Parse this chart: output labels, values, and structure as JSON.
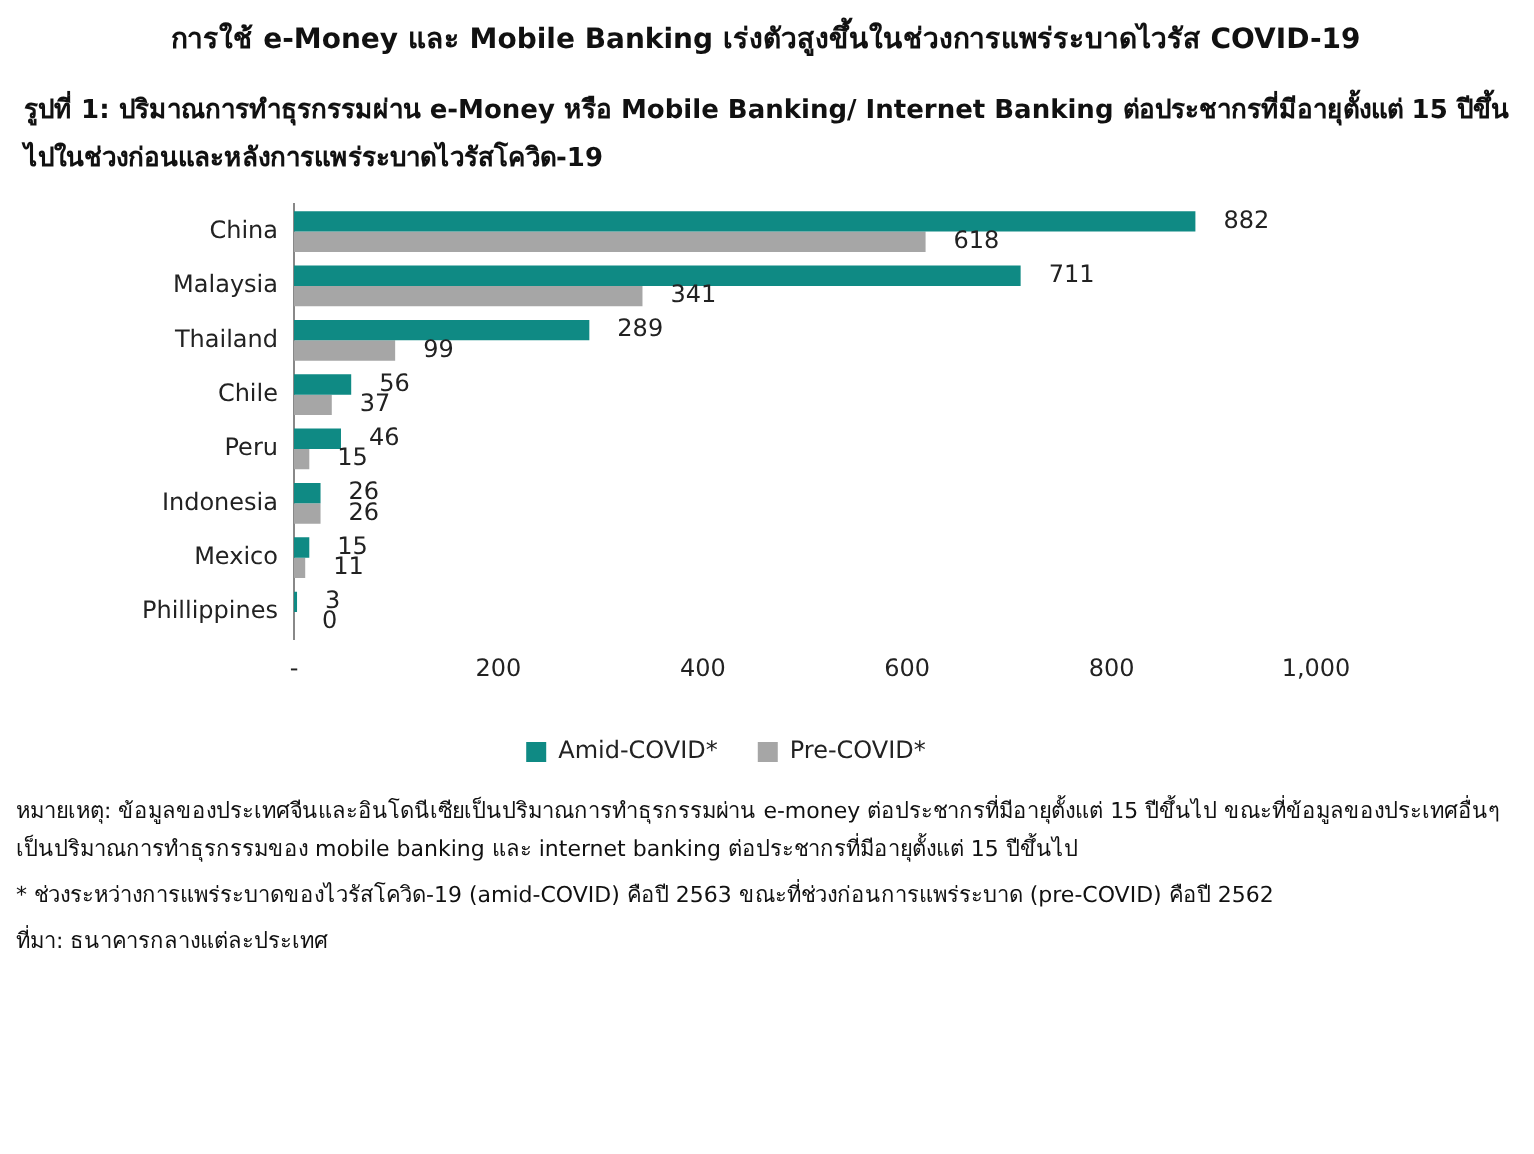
{
  "chart_data": {
    "type": "bar",
    "orientation": "horizontal",
    "title": "การใช้ e-Money และ Mobile Banking เร่งตัวสูงขึ้นในช่วงการแพร่ระบาดไวรัส COVID-19",
    "subtitle": "รูปที่ 1: ปริมาณการทำธุรกรรมผ่าน e-Money หรือ Mobile Banking/ Internet Banking ต่อประชากรที่มีอายุตั้งแต่ 15 ปีขึ้นไปในช่วงก่อนและหลังการแพร่ระบาดไวรัสโควิด-19",
    "categories": [
      "China",
      "Malaysia",
      "Thailand",
      "Chile",
      "Peru",
      "Indonesia",
      "Mexico",
      "Phillippines"
    ],
    "series": [
      {
        "name": "Amid-COVID*",
        "color": "#0f8a84",
        "values": [
          882,
          711,
          289,
          56,
          46,
          26,
          15,
          3
        ]
      },
      {
        "name": "Pre-COVID*",
        "color": "#a6a6a6",
        "values": [
          618,
          341,
          99,
          37,
          15,
          26,
          11,
          0
        ]
      }
    ],
    "xlim": [
      0,
      1000
    ],
    "xticks": [
      {
        "value": 0,
        "label": "-"
      },
      200,
      400,
      600,
      800,
      {
        "value": 1000,
        "label": "1,000"
      }
    ],
    "data_labels": true,
    "legend": "bottom",
    "grid": false,
    "annotations": [
      "หมายเหตุ: ข้อมูลของประเทศจีนและอินโดนีเซียเป็นปริมาณการทำธุรกรรมผ่าน e-money ต่อประชากรที่มีอายุตั้งแต่ 15 ปีขึ้นไป ขณะที่ข้อมูลของประเทศอื่นๆ เป็นปริมาณการทำธุรกรรมของ mobile banking และ internet banking ต่อประชากรที่มีอายุตั้งแต่ 15 ปีขึ้นไป",
      "* ช่วงระหว่างการแพร่ระบาดของไวรัสโควิด-19 (amid-COVID) คือปี 2563 ขณะที่ช่วงก่อนการแพร่ระบาด (pre-COVID) คือปี 2562",
      "ที่มา: ธนาคารกลางแต่ละประเทศ"
    ]
  }
}
